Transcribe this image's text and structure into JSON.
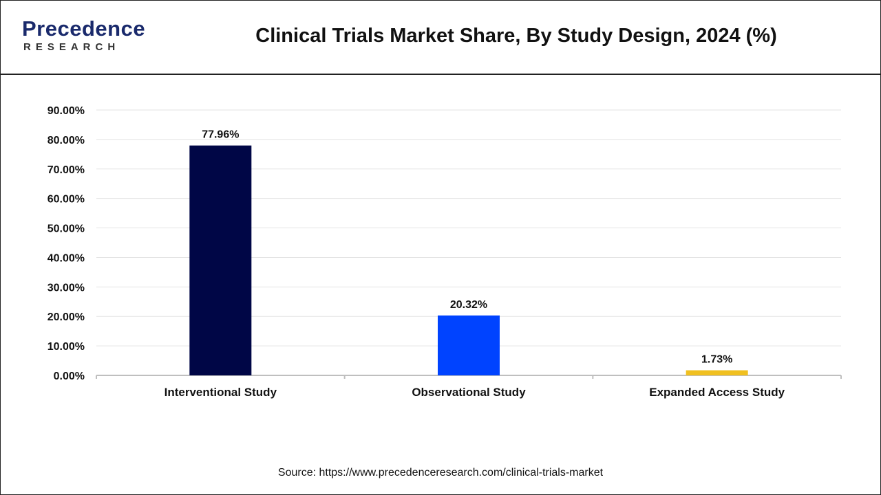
{
  "brand": {
    "name": "Precedence",
    "sub": "RESEARCH",
    "color": "#1a2a6c"
  },
  "title": "Clinical Trials Market Share, By Study Design, 2024 (%)",
  "source": "Source: https://www.precedenceresearch.com/clinical-trials-market",
  "chart_data": {
    "type": "bar",
    "title": "Clinical Trials Market Share, By Study Design, 2024 (%)",
    "xlabel": "",
    "ylabel": "",
    "categories": [
      "Interventional Study",
      "Observational Study",
      "Expanded Access Study"
    ],
    "values": [
      77.96,
      20.32,
      1.73
    ],
    "value_labels": [
      "77.96%",
      "20.32%",
      "1.73%"
    ],
    "colors": [
      "#000646",
      "#0043ff",
      "#f0c020"
    ],
    "ylim": [
      0,
      90
    ],
    "yticks": [
      0,
      10,
      20,
      30,
      40,
      50,
      60,
      70,
      80,
      90
    ],
    "ytick_labels": [
      "0.00%",
      "10.00%",
      "20.00%",
      "30.00%",
      "40.00%",
      "50.00%",
      "60.00%",
      "70.00%",
      "80.00%",
      "90.00%"
    ],
    "grid": true,
    "legend": "none"
  }
}
